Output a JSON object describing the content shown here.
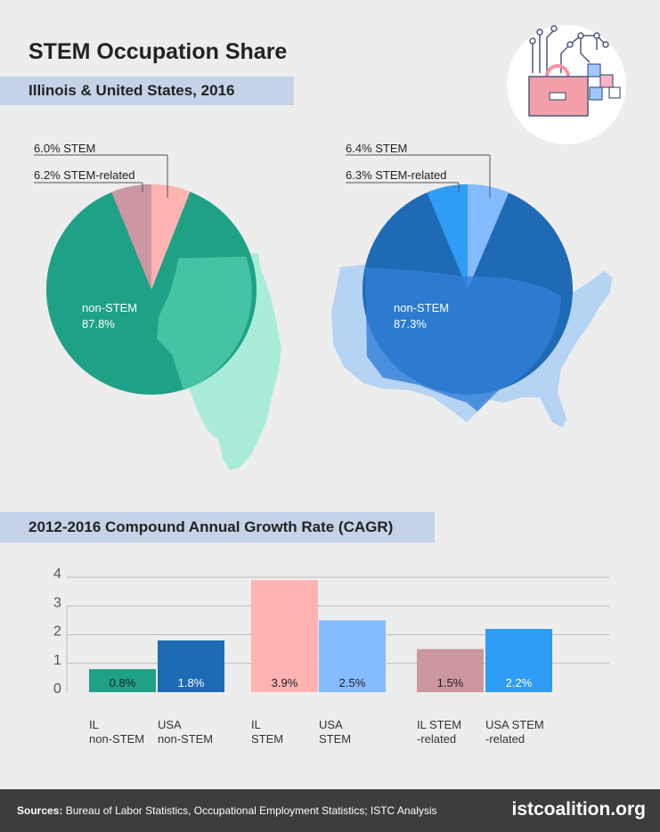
{
  "header": {
    "title": "STEM Occupation Share",
    "subtitle": "Illinois & United States, 2016"
  },
  "cagr_header": "2012-2016 Compound Annual Growth Rate (CAGR)",
  "colors": {
    "il_nonstem": "#1fa185",
    "il_stem": "#ffb3b3",
    "il_related": "#cc97a0",
    "us_nonstem": "#1f6ab5",
    "us_stem": "#85bbff",
    "us_related": "#2f9cf5",
    "il_map": "#a8ecd9",
    "us_map": "#b5d3f2",
    "band": "#c5d2e8",
    "footer": "#3d3d3d"
  },
  "chart_data": [
    {
      "type": "pie",
      "name": "Illinois",
      "slices": [
        {
          "label": "non-STEM",
          "value": 87.8,
          "text": "87.8%"
        },
        {
          "label": "STEM",
          "value": 6.0,
          "text": "6.0% STEM"
        },
        {
          "label": "STEM-related",
          "value": 6.2,
          "text": "6.2% STEM-related"
        }
      ]
    },
    {
      "type": "pie",
      "name": "United States",
      "slices": [
        {
          "label": "non-STEM",
          "value": 87.3,
          "text": "87.3%"
        },
        {
          "label": "STEM",
          "value": 6.4,
          "text": "6.4% STEM"
        },
        {
          "label": "STEM-related",
          "value": 6.3,
          "text": "6.3% STEM-related"
        }
      ]
    },
    {
      "type": "bar",
      "ylim": [
        0,
        4
      ],
      "yticks": [
        "0",
        "1",
        "2",
        "3",
        "4"
      ],
      "bars": [
        {
          "l1": "IL",
          "l2": "non-STEM",
          "value": 0.8,
          "label": "0.8%",
          "color": "#1fa185"
        },
        {
          "l1": "USA",
          "l2": "non-STEM",
          "value": 1.8,
          "label": "1.8%",
          "color": "#1f6ab5"
        },
        {
          "l1": "IL",
          "l2": "STEM",
          "value": 3.9,
          "label": "3.9%",
          "color": "#ffb3b3"
        },
        {
          "l1": "USA",
          "l2": "STEM",
          "value": 2.5,
          "label": "2.5%",
          "color": "#85bbff"
        },
        {
          "l1": "IL STEM",
          "l2": "-related",
          "value": 1.5,
          "label": "1.5%",
          "color": "#cc97a0"
        },
        {
          "l1": "USA STEM",
          "l2": "-related",
          "value": 2.2,
          "label": "2.2%",
          "color": "#2f9cf5"
        }
      ]
    }
  ],
  "footer": {
    "sources_label": "Sources:",
    "sources_text": "Bureau of Labor Statistics, Occupational Employment Statistics; ISTC Analysis",
    "site": "istcoalition.org"
  }
}
